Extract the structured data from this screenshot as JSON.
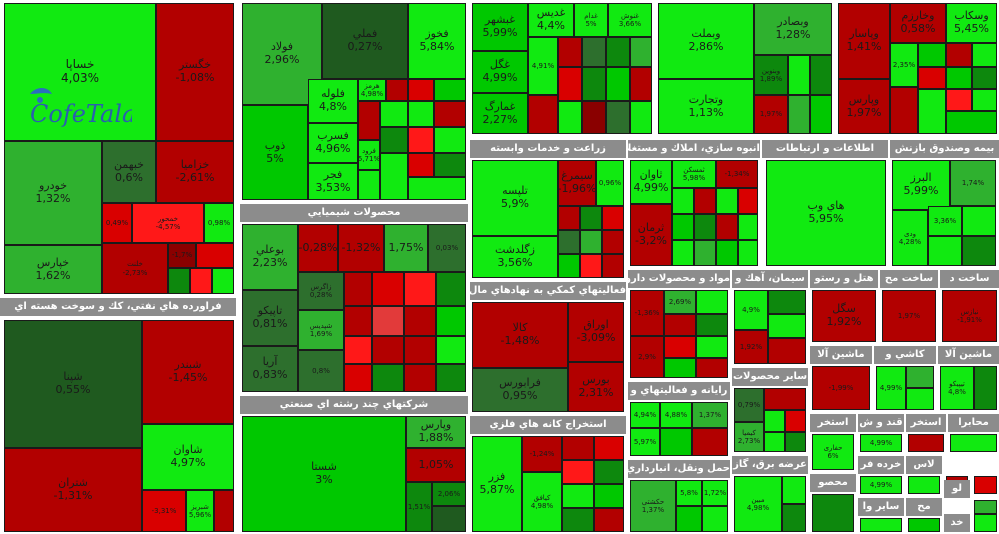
{
  "sections": {
    "automotive": {
      "title": "",
      "cells": [
        {
          "name": "خساپا",
          "pct": "4,03%"
        },
        {
          "name": "خگستر",
          "pct": "-1,08%"
        },
        {
          "name": "خودرو",
          "pct": "1,32%"
        },
        {
          "name": "خبهمن",
          "pct": "0,6%"
        },
        {
          "name": "خزامیا",
          "pct": "-2,61%"
        },
        {
          "name": "خپارس",
          "pct": "1,62%"
        },
        {
          "name": "خمحور",
          "pct": "-4,57%"
        },
        {
          "name": "",
          "pct": "0,49%"
        },
        {
          "name": "خلنت",
          "pct": "-2,73%"
        },
        {
          "name": "",
          "pct": "-1,7%"
        },
        {
          "name": "",
          "pct": "0,98%"
        }
      ]
    },
    "oil": {
      "title": "فراورده هاي نفتي، كك و سوخت هسته اي",
      "cells": [
        {
          "name": "شپنا",
          "pct": "0,55%"
        },
        {
          "name": "شبندر",
          "pct": "-1,45%"
        },
        {
          "name": "شاوان",
          "pct": "4,97%"
        },
        {
          "name": "شتران",
          "pct": "-1,31%"
        },
        {
          "name": "",
          "pct": "-3,31%"
        },
        {
          "name": "شبریز",
          "pct": "5,96%"
        }
      ]
    },
    "metals": {
      "title": "",
      "cells": [
        {
          "name": "فولاد",
          "pct": "2,96%"
        },
        {
          "name": "فملي",
          "pct": "0,27%"
        },
        {
          "name": "فخوز",
          "pct": "5,84%"
        },
        {
          "name": "ذوب",
          "pct": "5%"
        },
        {
          "name": "فلوله",
          "pct": "4,8%"
        },
        {
          "name": "فسرب",
          "pct": "4,96%"
        },
        {
          "name": "فجر",
          "pct": "3,53%"
        },
        {
          "name": "فرود",
          "pct": "5,71%"
        },
        {
          "name": "هرمز",
          "pct": "4,98%"
        }
      ]
    },
    "chemicals": {
      "title": "محصولات شيميايي",
      "cells": [
        {
          "name": "بوعلي",
          "pct": "2,23%"
        },
        {
          "name": "",
          "pct": "-0,28%"
        },
        {
          "name": "",
          "pct": "-1,32%"
        },
        {
          "name": "",
          "pct": "1,75%"
        },
        {
          "name": "",
          "pct": "0,03%"
        },
        {
          "name": "تاپیکو",
          "pct": "0,81%"
        },
        {
          "name": "زاگرس",
          "pct": "0,28%"
        },
        {
          "name": "شپدیس",
          "pct": "1,69%"
        },
        {
          "name": "آریا",
          "pct": "0,83%"
        },
        {
          "name": "",
          "pct": "0,8%"
        }
      ]
    },
    "multi": {
      "title": "شركتهاي چند رشته اي صنعتي",
      "cells": [
        {
          "name": "شستا",
          "pct": "3%"
        },
        {
          "name": "وپارس",
          "pct": "1,88%"
        },
        {
          "name": "وصنا",
          "pct": "1,05%"
        },
        {
          "name": "",
          "pct": "2,06%"
        },
        {
          "name": "وصنا",
          "pct": "1,51%"
        }
      ]
    },
    "mining": {
      "title": "",
      "cells": [
        {
          "name": "غبشهر",
          "pct": "5,99%"
        },
        {
          "name": "غدیس",
          "pct": "4,4%"
        },
        {
          "name": "غدام",
          "pct": "5%"
        },
        {
          "name": "غنوش",
          "pct": "3,66%"
        },
        {
          "name": "غگل",
          "pct": "4,99%"
        },
        {
          "name": "",
          "pct": "4,91%"
        },
        {
          "name": "غمارگ",
          "pct": "2,27%"
        }
      ]
    },
    "finance1": {
      "title": "",
      "cells": [
        {
          "name": "وبملت",
          "pct": "2,86%"
        },
        {
          "name": "وبصادر",
          "pct": "1,28%"
        },
        {
          "name": "وبنوین",
          "pct": "1,89%"
        },
        {
          "name": "وتجارت",
          "pct": "1,13%"
        },
        {
          "name": "",
          "pct": "1,97%"
        }
      ]
    },
    "finance2": {
      "title": "",
      "cells": [
        {
          "name": "وپاسار",
          "pct": "1,41%"
        },
        {
          "name": "وخارزم",
          "pct": "0,58%"
        },
        {
          "name": "وسکاب",
          "pct": "5,45%"
        },
        {
          "name": "وپارس",
          "pct": "1,97%"
        },
        {
          "name": "",
          "pct": "2,35%"
        }
      ]
    },
    "telecom": {
      "title": "زراعت و خدمات وابسته",
      "cells": [
        {
          "name": "تلپسه",
          "pct": "5,9%"
        },
        {
          "name": "سیمرغ",
          "pct": "-1,96%"
        },
        {
          "name": "",
          "pct": "0,96%"
        },
        {
          "name": "زگلدشت",
          "pct": "3,56%"
        }
      ]
    },
    "cement": {
      "title": "انبوه سازي، املاك و مستغلات",
      "cells": [
        {
          "name": "ثمسکن",
          "pct": "5,98%"
        },
        {
          "name": "ثاوان",
          "pct": "4,99%"
        },
        {
          "name": "",
          "pct": "-1,34%"
        },
        {
          "name": "ثرمان",
          "pct": "-3,2%"
        }
      ]
    },
    "it": {
      "title": "اطلاعات و ارتباطات",
      "cells": [
        {
          "name": "هاي وب",
          "pct": "5,95%"
        }
      ]
    },
    "funds": {
      "title": "بيمه وصندوق بازنش",
      "cells": [
        {
          "name": "البرز",
          "pct": "5,99%"
        },
        {
          "name": "",
          "pct": "1,74%"
        },
        {
          "name": "ودی",
          "pct": "4,28%"
        },
        {
          "name": "",
          "pct": "3,36%"
        }
      ]
    },
    "holding": {
      "title": "فعاليتهاي كمكي به نهادهاي مال",
      "cells": [
        {
          "name": "کالا",
          "pct": "-1,48%"
        },
        {
          "name": "اوراق",
          "pct": "-3,09%"
        },
        {
          "name": "فرابورس",
          "pct": "0,95%"
        },
        {
          "name": "بورس",
          "pct": "2,31%"
        }
      ]
    },
    "extraction": {
      "title": "استخراج كانه هاي فلزي",
      "cells": [
        {
          "name": "فزر",
          "pct": "5,87%"
        },
        {
          "name": "",
          "pct": "-1,24%"
        },
        {
          "name": "کیافق",
          "pct": "4,98%"
        }
      ]
    },
    "pharma": {
      "title": "مواد و محصولات دارو",
      "cells": [
        {
          "name": "",
          "pct": "-1,36%"
        },
        {
          "name": "",
          "pct": "2,69%"
        },
        {
          "name": "",
          "pct": "2,9%"
        }
      ]
    },
    "cement2": {
      "title": "سيمان، آهك و",
      "cells": [
        {
          "name": "",
          "pct": "4,9%"
        },
        {
          "name": "",
          "pct": "1,92%"
        }
      ]
    },
    "hotel": {
      "title": "هتل و رستو",
      "cells": [
        {
          "name": "سگل",
          "pct": "1,92%"
        }
      ]
    },
    "build": {
      "title": "ساخت مح",
      "cells": [
        {
          "name": "",
          "pct": "1,97%"
        }
      ]
    },
    "build2": {
      "title": "ساخت د",
      "cells": [
        {
          "name": "نیازس",
          "pct": "-1,91%"
        }
      ]
    },
    "computer": {
      "title": "رايانه و فعاليتهاي و",
      "cells": [
        {
          "name": "",
          "pct": "4,94%"
        },
        {
          "name": "",
          "pct": "4,88%"
        },
        {
          "name": "",
          "pct": "5,97%"
        },
        {
          "name": "",
          "pct": "1,37%"
        }
      ]
    },
    "other": {
      "title": "ساير محصولات",
      "cells": [
        {
          "name": "",
          "pct": "0,79%"
        },
        {
          "name": "کیمیا",
          "pct": "2,73%"
        }
      ]
    },
    "machinery": {
      "title": "ماشين آلا",
      "cells": [
        {
          "name": "",
          "pct": "-1,99%"
        }
      ]
    },
    "tiles": {
      "title": "كاشي و",
      "cells": [
        {
          "name": "",
          "pct": "4,99%"
        }
      ]
    },
    "machinery2": {
      "title": "ماشين آلا",
      "cells": [
        {
          "name": "تیپیکو",
          "pct": "4,8%"
        }
      ]
    },
    "transport": {
      "title": "حمل ونقل، انبارداري",
      "cells": [
        {
          "name": "حکشتی",
          "pct": "1,37%"
        },
        {
          "name": "",
          "pct": "5,8%"
        },
        {
          "name": "",
          "pct": "1,72%"
        }
      ]
    },
    "power": {
      "title": "عرضه برق، گاز",
      "cells": [
        {
          "name": "مبین",
          "pct": "4,98%"
        }
      ]
    },
    "extraction2": {
      "title": "استخر",
      "cells": [
        {
          "name": "حفاری",
          "pct": "6%"
        }
      ]
    },
    "sugar": {
      "title": "قند و ش",
      "cells": [
        {
          "name": "",
          "pct": "4,99%"
        }
      ]
    },
    "retail": {
      "title": "خرده فر",
      "cells": [
        {
          "name": "",
          "pct": "4,99%"
        }
      ]
    },
    "tiny": {
      "titles": [
        "استخر",
        "محابرا",
        "لاس",
        "محصو",
        "ساير وا",
        "لو",
        "مح",
        "خد"
      ]
    }
  },
  "logo": {
    "text": "CofeTala"
  }
}
